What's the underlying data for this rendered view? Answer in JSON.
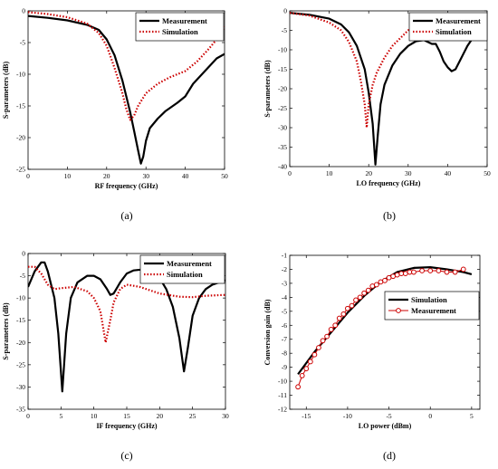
{
  "chart_data": [
    {
      "type": "line",
      "panel_label": "(a)",
      "xlabel": "RF frequency (GHz)",
      "ylabel": "S-parameters (dB)",
      "xlim": [
        0,
        50
      ],
      "ylim": [
        -25,
        0
      ],
      "xticks": [
        0,
        10,
        20,
        30,
        40,
        50
      ],
      "yticks": [
        0,
        -5,
        -10,
        -15,
        -20,
        -25
      ],
      "grid": false,
      "legend": "top-right",
      "series": [
        {
          "name": "Measurement",
          "color": "#000000",
          "style": "solid",
          "points": [
            [
              0,
              -0.8
            ],
            [
              5,
              -1.1
            ],
            [
              10,
              -1.5
            ],
            [
              15,
              -2.2
            ],
            [
              18,
              -3
            ],
            [
              20,
              -4.5
            ],
            [
              22,
              -7
            ],
            [
              24,
              -11
            ],
            [
              26,
              -16
            ],
            [
              27,
              -19
            ],
            [
              28,
              -22
            ],
            [
              28.7,
              -24.1
            ],
            [
              29.3,
              -23
            ],
            [
              30,
              -20.5
            ],
            [
              31,
              -18.5
            ],
            [
              33,
              -17
            ],
            [
              35,
              -15.8
            ],
            [
              38,
              -14.5
            ],
            [
              40,
              -13.5
            ],
            [
              42,
              -11.5
            ],
            [
              45,
              -9.5
            ],
            [
              48,
              -7.5
            ],
            [
              50,
              -6.8
            ]
          ]
        },
        {
          "name": "Simulation",
          "color": "#cc0000",
          "style": "dotted",
          "points": [
            [
              0,
              -0.2
            ],
            [
              5,
              -0.5
            ],
            [
              10,
              -1
            ],
            [
              15,
              -2
            ],
            [
              18,
              -3.5
            ],
            [
              20,
              -5.5
            ],
            [
              22,
              -9
            ],
            [
              24,
              -13
            ],
            [
              25,
              -15.5
            ],
            [
              26,
              -17.2
            ],
            [
              27,
              -16.5
            ],
            [
              28,
              -15
            ],
            [
              30,
              -13
            ],
            [
              33,
              -11.5
            ],
            [
              36,
              -10.5
            ],
            [
              40,
              -9.5
            ],
            [
              43,
              -8
            ],
            [
              46,
              -6
            ],
            [
              48,
              -4.5
            ],
            [
              50,
              -2.5
            ]
          ]
        }
      ]
    },
    {
      "type": "line",
      "panel_label": "(b)",
      "xlabel": "LO frequency (GHz)",
      "ylabel": "S-parameters (dB)",
      "xlim": [
        0,
        50
      ],
      "ylim": [
        -40,
        0
      ],
      "xticks": [
        0,
        10,
        20,
        30,
        40,
        50
      ],
      "yticks": [
        0,
        -5,
        -10,
        -15,
        -20,
        -25,
        -30,
        -35,
        -40
      ],
      "grid": false,
      "legend": "top-right",
      "series": [
        {
          "name": "Measurement",
          "color": "#000000",
          "style": "solid",
          "points": [
            [
              0,
              -0.5
            ],
            [
              5,
              -1
            ],
            [
              10,
              -2
            ],
            [
              13,
              -3.5
            ],
            [
              15,
              -5.5
            ],
            [
              17,
              -9
            ],
            [
              19,
              -15
            ],
            [
              20,
              -21
            ],
            [
              21,
              -29
            ],
            [
              21.7,
              -39.5
            ],
            [
              22.3,
              -32
            ],
            [
              23,
              -24
            ],
            [
              24,
              -19
            ],
            [
              26,
              -14
            ],
            [
              28,
              -11
            ],
            [
              30,
              -9
            ],
            [
              32,
              -7.8
            ],
            [
              34,
              -7.5
            ],
            [
              36,
              -8.5
            ],
            [
              37,
              -8.5
            ],
            [
              38,
              -10.5
            ],
            [
              39,
              -13
            ],
            [
              40,
              -14.5
            ],
            [
              41,
              -15.5
            ],
            [
              42,
              -15
            ],
            [
              43,
              -13
            ],
            [
              45,
              -9
            ],
            [
              47,
              -6
            ],
            [
              50,
              -4
            ]
          ]
        },
        {
          "name": "Simulation",
          "color": "#cc0000",
          "style": "dotted",
          "points": [
            [
              0,
              -0.5
            ],
            [
              5,
              -1.2
            ],
            [
              10,
              -3
            ],
            [
              13,
              -5
            ],
            [
              15,
              -8
            ],
            [
              17,
              -13
            ],
            [
              18,
              -18
            ],
            [
              19,
              -24
            ],
            [
              19.5,
              -30
            ],
            [
              20,
              -24
            ],
            [
              21,
              -19
            ],
            [
              22,
              -16
            ],
            [
              24,
              -12
            ],
            [
              26,
              -9
            ],
            [
              28,
              -7
            ],
            [
              30,
              -5
            ],
            [
              32,
              -3.8
            ],
            [
              34,
              -3
            ],
            [
              36,
              -2.5
            ],
            [
              40,
              -2.2
            ],
            [
              45,
              -2.2
            ],
            [
              50,
              -2.3
            ]
          ]
        }
      ]
    },
    {
      "type": "line",
      "panel_label": "(c)",
      "xlabel": "IF frequency (GHz)",
      "ylabel": "S-parameters (dB)",
      "xlim": [
        0,
        30
      ],
      "ylim": [
        -35,
        0
      ],
      "xticks": [
        0,
        5,
        10,
        15,
        20,
        25,
        30
      ],
      "yticks": [
        0,
        -5,
        -10,
        -15,
        -20,
        -25,
        -30,
        -35
      ],
      "grid": false,
      "legend": "top-right",
      "series": [
        {
          "name": "Measurement",
          "color": "#000000",
          "style": "solid",
          "points": [
            [
              0,
              -7.5
            ],
            [
              1,
              -4
            ],
            [
              2,
              -2
            ],
            [
              2.5,
              -2
            ],
            [
              3,
              -4
            ],
            [
              4,
              -10
            ],
            [
              4.6,
              -18
            ],
            [
              5.2,
              -31
            ],
            [
              5.8,
              -18
            ],
            [
              6.5,
              -10
            ],
            [
              7.5,
              -6.5
            ],
            [
              9,
              -5
            ],
            [
              10,
              -5
            ],
            [
              11,
              -5.8
            ],
            [
              12,
              -8
            ],
            [
              12.5,
              -9.3
            ],
            [
              13,
              -9
            ],
            [
              14,
              -6.5
            ],
            [
              15,
              -4.5
            ],
            [
              16,
              -3.8
            ],
            [
              18,
              -3.5
            ],
            [
              19,
              -4
            ],
            [
              20,
              -5.5
            ],
            [
              21,
              -8
            ],
            [
              22,
              -12
            ],
            [
              23,
              -19
            ],
            [
              23.7,
              -26.5
            ],
            [
              24.3,
              -21
            ],
            [
              25,
              -14
            ],
            [
              26,
              -10
            ],
            [
              27,
              -8
            ],
            [
              28,
              -7
            ],
            [
              30,
              -6
            ]
          ]
        },
        {
          "name": "Simulation",
          "color": "#cc0000",
          "style": "dotted",
          "points": [
            [
              0,
              -3
            ],
            [
              1,
              -3
            ],
            [
              2,
              -4.5
            ],
            [
              3,
              -7
            ],
            [
              4,
              -8
            ],
            [
              5,
              -7.8
            ],
            [
              7,
              -7.5
            ],
            [
              9,
              -8.5
            ],
            [
              10,
              -10
            ],
            [
              11,
              -13
            ],
            [
              11.8,
              -20
            ],
            [
              12.5,
              -15
            ],
            [
              13,
              -11
            ],
            [
              14,
              -8
            ],
            [
              15,
              -7
            ],
            [
              17,
              -7.5
            ],
            [
              20,
              -9
            ],
            [
              23,
              -9.7
            ],
            [
              25,
              -9.8
            ],
            [
              27,
              -9.5
            ],
            [
              30,
              -9.3
            ]
          ]
        }
      ]
    },
    {
      "type": "line",
      "panel_label": "(d)",
      "xlabel": "LO power (dBm)",
      "ylabel": "Conversion gain (dB)",
      "xlim": [
        -17,
        6
      ],
      "ylim": [
        -12,
        -1
      ],
      "xticks": [
        -15,
        -10,
        -5,
        0,
        5
      ],
      "yticks": [
        -1,
        -2,
        -3,
        -4,
        -5,
        -6,
        -7,
        -8,
        -9,
        -10,
        -11,
        -12
      ],
      "grid": false,
      "legend": "center-right",
      "series": [
        {
          "name": "Simulation",
          "color": "#000000",
          "style": "solid",
          "points": [
            [
              -16,
              -9.5
            ],
            [
              -14,
              -7.9
            ],
            [
              -12,
              -6.5
            ],
            [
              -10,
              -5.1
            ],
            [
              -8,
              -3.9
            ],
            [
              -6,
              -2.9
            ],
            [
              -4,
              -2.2
            ],
            [
              -2,
              -1.9
            ],
            [
              0,
              -1.85
            ],
            [
              2,
              -2
            ],
            [
              4,
              -2.2
            ],
            [
              5,
              -2.35
            ]
          ]
        },
        {
          "name": "Measurement",
          "color": "#cc0000",
          "style": "marker",
          "points": [
            [
              -16,
              -10.4
            ],
            [
              -15.5,
              -9.6
            ],
            [
              -15,
              -9.1
            ],
            [
              -14.5,
              -8.6
            ],
            [
              -14,
              -8.1
            ],
            [
              -13.5,
              -7.6
            ],
            [
              -13,
              -7.1
            ],
            [
              -12.5,
              -6.8
            ],
            [
              -12,
              -6.3
            ],
            [
              -11.5,
              -6
            ],
            [
              -11,
              -5.5
            ],
            [
              -10.5,
              -5.2
            ],
            [
              -10,
              -4.8
            ],
            [
              -9.5,
              -4.6
            ],
            [
              -9,
              -4.2
            ],
            [
              -8.5,
              -4
            ],
            [
              -8,
              -3.7
            ],
            [
              -7.5,
              -3.5
            ],
            [
              -7,
              -3.2
            ],
            [
              -6.5,
              -3.1
            ],
            [
              -6,
              -2.9
            ],
            [
              -5.5,
              -2.8
            ],
            [
              -5,
              -2.6
            ],
            [
              -4.5,
              -2.5
            ],
            [
              -4,
              -2.4
            ],
            [
              -3.5,
              -2.3
            ],
            [
              -3,
              -2.3
            ],
            [
              -2.5,
              -2.2
            ],
            [
              -2,
              -2.2
            ],
            [
              -1,
              -2.1
            ],
            [
              0,
              -2.1
            ],
            [
              1,
              -2.1
            ],
            [
              2,
              -2.2
            ],
            [
              3,
              -2.2
            ],
            [
              4,
              -2
            ]
          ]
        }
      ]
    }
  ]
}
